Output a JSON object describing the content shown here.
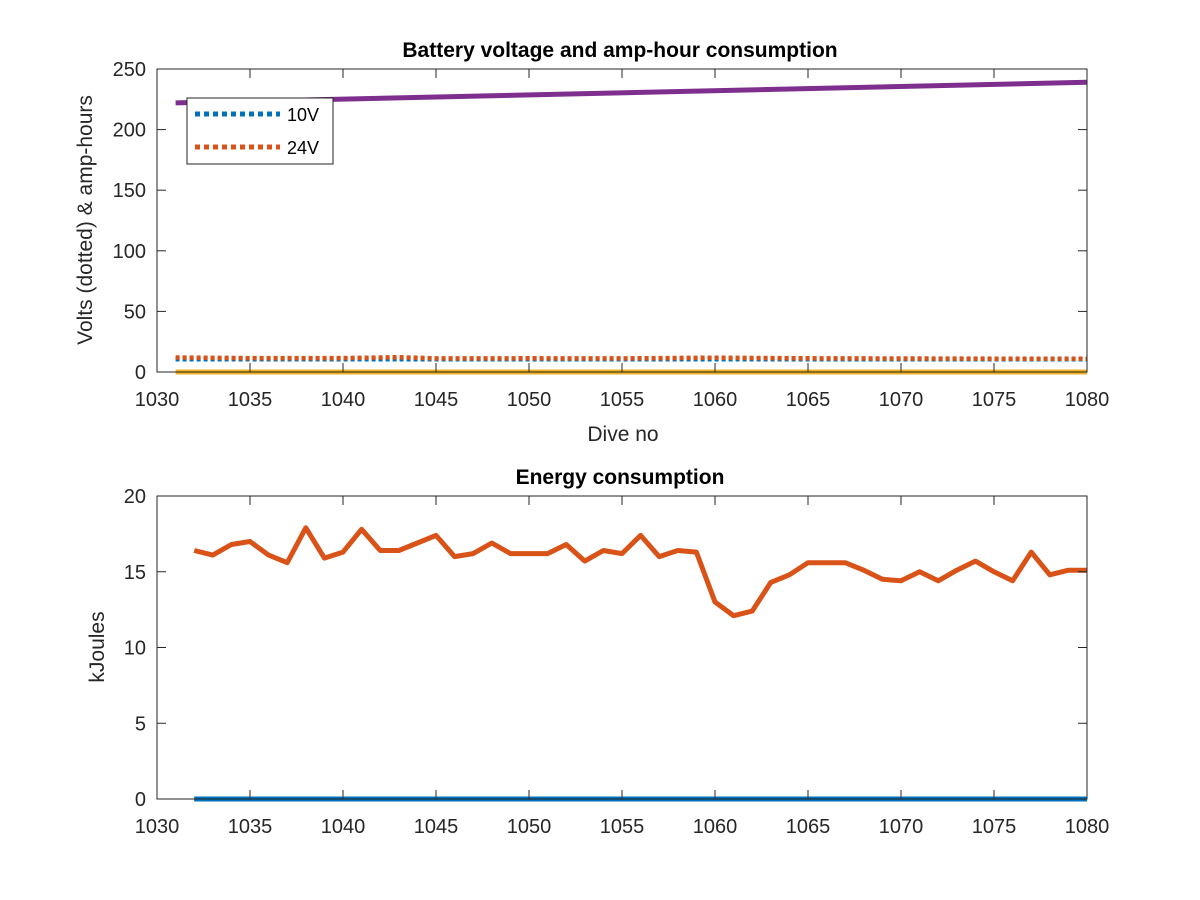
{
  "chart_data": [
    {
      "type": "line",
      "title": "Battery voltage and amp-hour consumption",
      "xlabel": "Dive no",
      "ylabel": "Volts (dotted) & amp-hours",
      "xlim": [
        1030,
        1080
      ],
      "ylim": [
        0,
        250
      ],
      "xticks": [
        "1030",
        "1035",
        "1040",
        "1045",
        "1050",
        "1055",
        "1060",
        "1065",
        "1070",
        "1075",
        "1080"
      ],
      "yticks": [
        "0",
        "50",
        "100",
        "150",
        "200",
        "250"
      ],
      "grid": false,
      "legend_position": "top-left",
      "series": [
        {
          "name": "10V",
          "style": "dotted",
          "color": "#0072BD",
          "x": [
            1031,
            1080
          ],
          "y": [
            10.5,
            10.5
          ]
        },
        {
          "name": "24V",
          "style": "dotted",
          "color": "#D95319",
          "x": [
            1031,
            1035,
            1040,
            1043,
            1045,
            1050,
            1055,
            1060,
            1065,
            1070,
            1075,
            1080
          ],
          "y": [
            12,
            11.5,
            11.5,
            12.2,
            11.2,
            11.3,
            11.2,
            11.8,
            11.3,
            11.1,
            11,
            10.9
          ]
        },
        {
          "style": "solid",
          "color": "#EDB120",
          "x": [
            1031,
            1080
          ],
          "y": [
            0,
            0
          ]
        },
        {
          "style": "solid",
          "color": "#7E2F8E",
          "x": [
            1031,
            1080
          ],
          "y": [
            222,
            239
          ]
        }
      ]
    },
    {
      "type": "line",
      "title": "Energy consumption",
      "xlabel": "",
      "ylabel": "kJoules",
      "xlim": [
        1030,
        1080
      ],
      "ylim": [
        0,
        20
      ],
      "xticks": [
        "1030",
        "1035",
        "1040",
        "1045",
        "1050",
        "1055",
        "1060",
        "1065",
        "1070",
        "1075",
        "1080"
      ],
      "yticks": [
        "0",
        "5",
        "10",
        "15",
        "20"
      ],
      "grid": false,
      "series": [
        {
          "style": "solid",
          "color": "#0072BD",
          "x": [
            1032,
            1080
          ],
          "y": [
            0,
            0
          ]
        },
        {
          "style": "solid",
          "color": "#D95319",
          "x": [
            1032,
            1033,
            1034,
            1035,
            1036,
            1037,
            1038,
            1039,
            1040,
            1041,
            1042,
            1043,
            1044,
            1045,
            1046,
            1047,
            1048,
            1049,
            1050,
            1051,
            1052,
            1053,
            1054,
            1055,
            1056,
            1057,
            1058,
            1059,
            1060,
            1061,
            1062,
            1063,
            1064,
            1065,
            1066,
            1067,
            1068,
            1069,
            1070,
            1071,
            1072,
            1073,
            1074,
            1075,
            1076,
            1077,
            1078,
            1079,
            1080
          ],
          "y": [
            16.4,
            16.1,
            16.8,
            17.0,
            16.1,
            15.6,
            17.9,
            15.9,
            16.3,
            17.8,
            16.4,
            16.4,
            16.9,
            17.4,
            16.0,
            16.2,
            16.9,
            16.2,
            16.2,
            16.2,
            16.8,
            15.7,
            16.4,
            16.2,
            17.4,
            16.0,
            16.4,
            16.3,
            13.0,
            12.1,
            12.4,
            14.3,
            14.8,
            15.6,
            15.6,
            15.6,
            15.1,
            14.5,
            14.4,
            15.0,
            14.4,
            15.1,
            15.7,
            15.0,
            14.4,
            16.3,
            14.8,
            15.1,
            15.1
          ]
        }
      ]
    }
  ]
}
